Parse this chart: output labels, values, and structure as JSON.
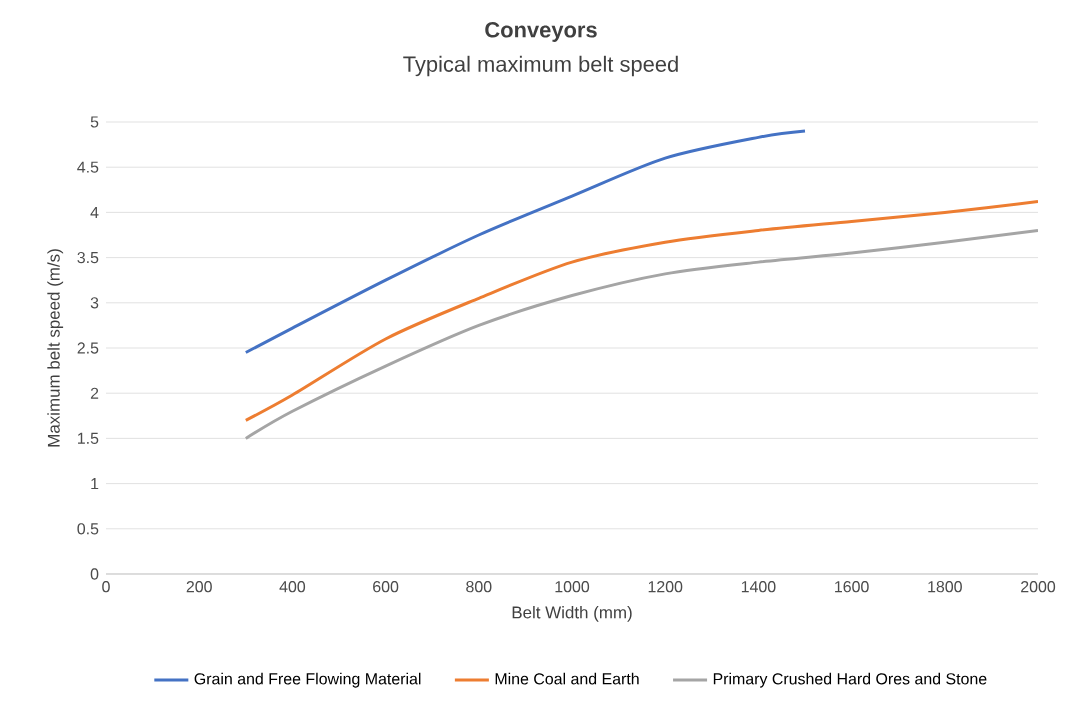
{
  "chart_data": {
    "type": "line",
    "title": "Conveyors",
    "subtitle": "Typical maximum belt speed",
    "xlabel": "Belt Width (mm)",
    "ylabel": "Maximum belt speed (m/s)",
    "xlim": [
      0,
      2000
    ],
    "xticks": [
      0,
      200,
      400,
      600,
      800,
      1000,
      1200,
      1400,
      1600,
      1800,
      2000
    ],
    "ylim": [
      0,
      5
    ],
    "yticks": [
      0,
      0.5,
      1,
      1.5,
      2,
      2.5,
      3,
      3.5,
      4,
      4.5,
      5
    ],
    "grid": "y",
    "legend": "bottom",
    "line_style": "solid",
    "marker": "none",
    "series": [
      {
        "name": "Grain and Free Flowing Material",
        "color": "#4472c4",
        "x": [
          300,
          400,
          600,
          800,
          1000,
          1200,
          1400,
          1500
        ],
        "values": [
          2.45,
          2.72,
          3.25,
          3.75,
          4.18,
          4.6,
          4.83,
          4.9
        ]
      },
      {
        "name": "Mine Coal and Earth",
        "color": "#ed7d31",
        "x": [
          300,
          400,
          600,
          800,
          1000,
          1200,
          1400,
          1600,
          1800,
          2000
        ],
        "values": [
          1.7,
          1.98,
          2.6,
          3.05,
          3.45,
          3.67,
          3.8,
          3.9,
          4.0,
          4.12
        ]
      },
      {
        "name": "Primary Crushed Hard Ores and Stone",
        "color": "#a5a5a5",
        "x": [
          300,
          400,
          600,
          800,
          1000,
          1200,
          1400,
          1600,
          1800,
          2000
        ],
        "values": [
          1.5,
          1.8,
          2.3,
          2.75,
          3.08,
          3.32,
          3.45,
          3.55,
          3.67,
          3.8
        ]
      }
    ]
  }
}
